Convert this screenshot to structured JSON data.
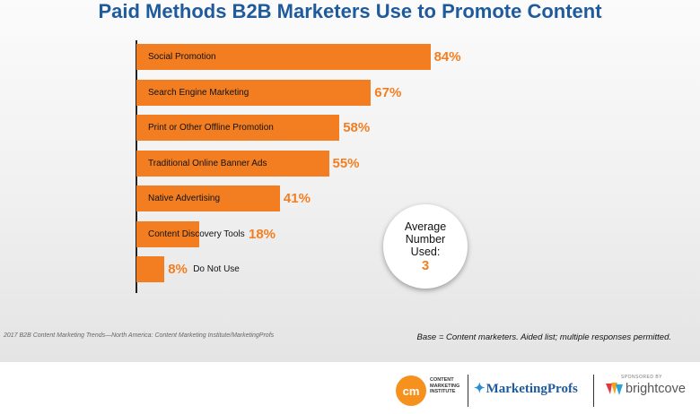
{
  "chart_data": {
    "type": "bar",
    "orientation": "horizontal",
    "title": "Paid Methods B2B Marketers Use to Promote Content",
    "categories": [
      "Social Promotion",
      "Search Engine Marketing",
      "Print or Other Offline Promotion",
      "Traditional Online Banner Ads",
      "Native Advertising",
      "Content Discovery Tools",
      "Do Not Use"
    ],
    "values": [
      84,
      67,
      58,
      55,
      41,
      18,
      8
    ],
    "value_labels": [
      "84%",
      "67%",
      "58%",
      "55%",
      "41%",
      "18%",
      "8%"
    ],
    "xlim": [
      0,
      100
    ],
    "bar_color": "#f37e21",
    "grid": false
  },
  "callout": {
    "label": "Average Number Used:",
    "value": "3"
  },
  "footnotes": {
    "source": "2017 B2B Content Marketing Trends—North America: Content Marketing Institute/MarketingProfs",
    "base": "Base = Content marketers. Aided list; multiple responses permitted."
  },
  "logos": {
    "cmi_mark": "cm",
    "cmi_text": "CONTENT MARKETING INSTITUTE",
    "marketingprofs": "MarketingProfs",
    "sponsored_by": "SPONSORED BY",
    "brightcove": "brightcove"
  },
  "colors": {
    "title": "#1f5b9c",
    "accent": "#f37e21",
    "cmi_orange": "#f6911e"
  }
}
